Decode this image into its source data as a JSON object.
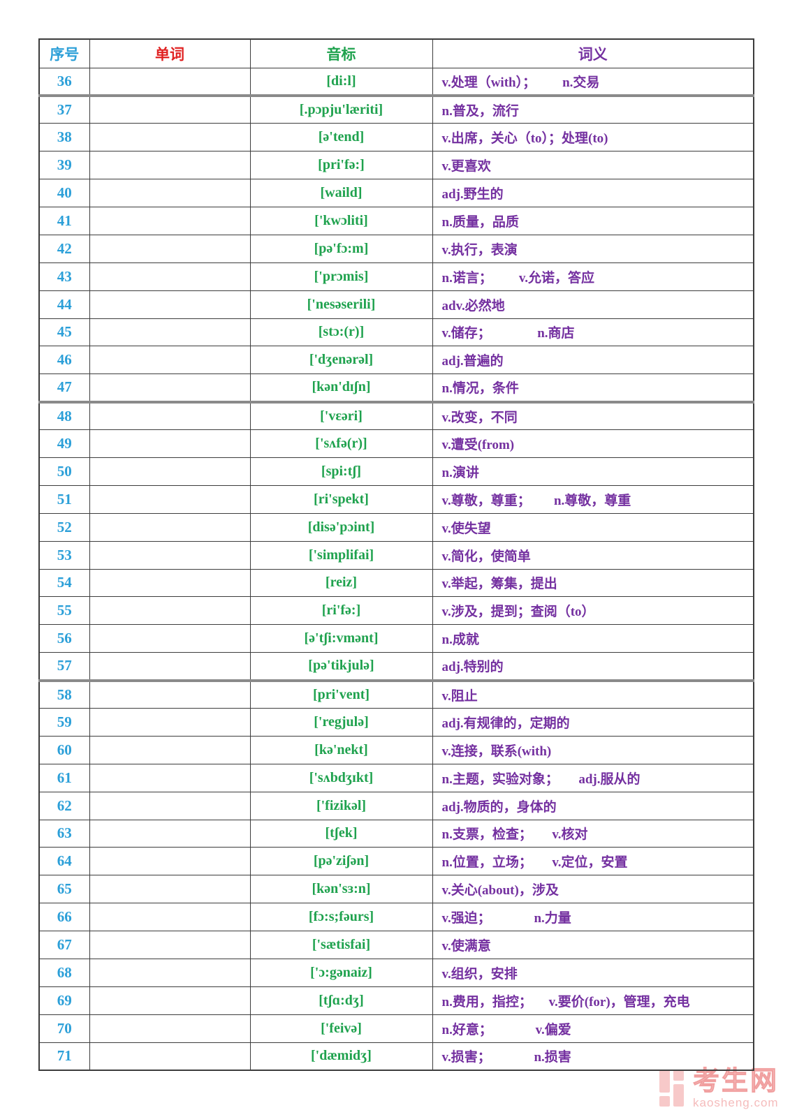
{
  "page": {
    "background": "#ffffff"
  },
  "colors": {
    "number_blue": "#2b9fd8",
    "word_red": "#e02222",
    "phonetic_green": "#1fa24e",
    "meaning_purple": "#7430a0",
    "border_dark": "#3c3c3c",
    "watermark_pink": "#eb7878"
  },
  "table": {
    "headers": [
      {
        "label": "序号"
      },
      {
        "label": "单词"
      },
      {
        "label": "音标"
      },
      {
        "label": "词义"
      }
    ],
    "rows": [
      {
        "num": "36",
        "word": "",
        "phonetic": "[di:l]",
        "meaning": "v.处理（with）；        n.交易"
      },
      {
        "num": "37",
        "word": "",
        "phonetic": "[.pɔpju'læriti]",
        "meaning": "n.普及，流行",
        "thick_top": true
      },
      {
        "num": "38",
        "word": "",
        "phonetic": "[ə'tend]",
        "meaning": "v.出席，关心（to）；处理(to)"
      },
      {
        "num": "39",
        "word": "",
        "phonetic": "[pri'fə:]",
        "meaning": "v.更喜欢"
      },
      {
        "num": "40",
        "word": "",
        "phonetic": "[waild]",
        "meaning": "adj.野生的"
      },
      {
        "num": "41",
        "word": "",
        "phonetic": "['kwɔliti]",
        "meaning": "n.质量，品质"
      },
      {
        "num": "42",
        "word": "",
        "phonetic": "[pə'fɔ:m]",
        "meaning": "v.执行，表演"
      },
      {
        "num": "43",
        "word": "",
        "phonetic": "['prɔmis]",
        "meaning": "n.诺言；        v.允诺，答应"
      },
      {
        "num": "44",
        "word": "",
        "phonetic": "['nesəserili]",
        "meaning": "adv.必然地"
      },
      {
        "num": "45",
        "word": "",
        "phonetic": "[stɔ:(r)]",
        "meaning": "v.储存；              n.商店"
      },
      {
        "num": "46",
        "word": "",
        "phonetic": "['dʒenərəl]",
        "meaning": "adj.普遍的"
      },
      {
        "num": "47",
        "word": "",
        "phonetic": "[kən'dɪʃn]",
        "meaning": "n.情况，条件"
      },
      {
        "num": "48",
        "word": "",
        "phonetic": "['vɛəri]",
        "meaning": "v.改变，不同",
        "thick_top": true
      },
      {
        "num": "49",
        "word": "",
        "phonetic": "['sʌfə(r)]",
        "meaning": "v.遭受(from)"
      },
      {
        "num": "50",
        "word": "",
        "phonetic": "[spi:tʃ]",
        "meaning": "n.演讲"
      },
      {
        "num": "51",
        "word": "",
        "phonetic": "[ri'spekt]",
        "meaning": "v.尊敬，尊重；       n.尊敬，尊重"
      },
      {
        "num": "52",
        "word": "",
        "phonetic": "[disə'pɔint]",
        "meaning": "v.使失望"
      },
      {
        "num": "53",
        "word": "",
        "phonetic": "['simplifai]",
        "meaning": "v.简化，使简单"
      },
      {
        "num": "54",
        "word": "",
        "phonetic": "[reiz]",
        "meaning": "v.举起，筹集，提出"
      },
      {
        "num": "55",
        "word": "",
        "phonetic": "[ri'fə:]",
        "meaning": "v.涉及，提到；查阅（to）"
      },
      {
        "num": "56",
        "word": "",
        "phonetic": "[ə'tʃi:vmənt]",
        "meaning": "n.成就"
      },
      {
        "num": "57",
        "word": "",
        "phonetic": "[pə'tikjulə]",
        "meaning": "adj.特别的"
      },
      {
        "num": "58",
        "word": "",
        "phonetic": "[pri'vent]",
        "meaning": "v.阻止",
        "thick_top": true
      },
      {
        "num": "59",
        "word": "",
        "phonetic": "['regjulə]",
        "meaning": "adj.有规律的，定期的"
      },
      {
        "num": "60",
        "word": "",
        "phonetic": "[kə'nekt]",
        "meaning": "v.连接，联系(with)"
      },
      {
        "num": "61",
        "word": "",
        "phonetic": "['sʌbdʒɪkt]",
        "meaning": "n.主题，实验对象；      adj.服从的"
      },
      {
        "num": "62",
        "word": "",
        "phonetic": "['fizikəl]",
        "meaning": "adj.物质的，身体的"
      },
      {
        "num": "63",
        "word": "",
        "phonetic": "[tʃek]",
        "meaning": "n.支票，检查；      v.核对"
      },
      {
        "num": "64",
        "word": "",
        "phonetic": "[pə'ziʃən]",
        "meaning": "n.位置，立场；      v.定位，安置"
      },
      {
        "num": "65",
        "word": "",
        "phonetic": "[kən'sɜ:n]",
        "meaning": "v.关心(about)，涉及"
      },
      {
        "num": "66",
        "word": "",
        "phonetic": "[fɔ:s;fəurs]",
        "meaning": "v.强迫；             n.力量"
      },
      {
        "num": "67",
        "word": "",
        "phonetic": "['sætisfai]",
        "meaning": "v.使满意"
      },
      {
        "num": "68",
        "word": "",
        "phonetic": "['ɔ:gənaiz]",
        "meaning": "v.组织，安排"
      },
      {
        "num": "69",
        "word": "",
        "phonetic": "[tʃɑ:dʒ]",
        "meaning": "n.费用，指控；     v.要价(for)，管理，充电"
      },
      {
        "num": "70",
        "word": "",
        "phonetic": "['feivə]",
        "meaning": "n.好意；             v.偏爱"
      },
      {
        "num": "71",
        "word": "",
        "phonetic": "['dæmidʒ]",
        "meaning": "v.损害；             n.损害"
      }
    ]
  },
  "watermark": {
    "site_name": "考生网",
    "site_url": "kaosheng.com"
  }
}
